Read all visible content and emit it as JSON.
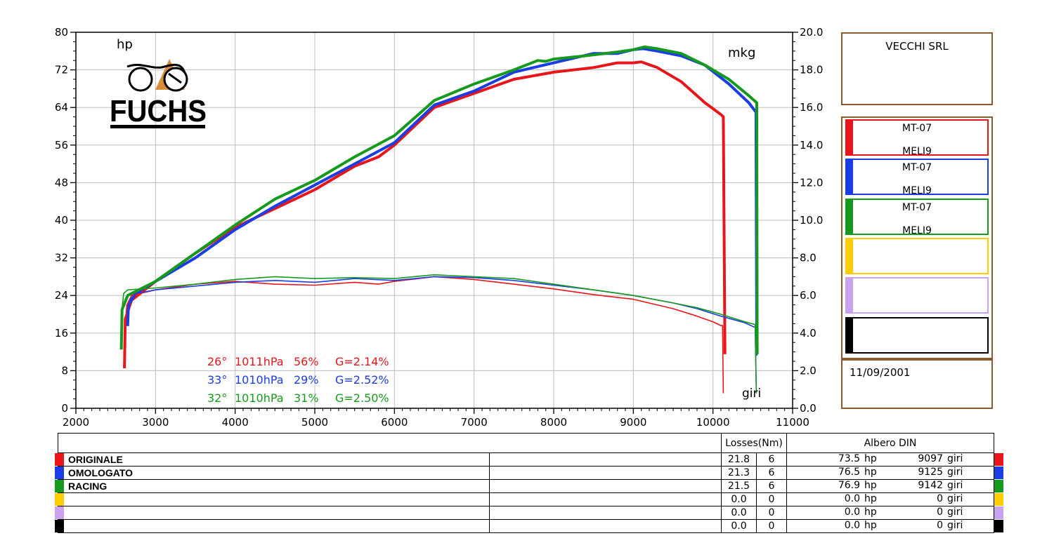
{
  "header": {
    "company": "VECCHI SRL",
    "date": "11/09/2001",
    "logo_text": "FUCHS"
  },
  "runs": [
    {
      "model": "MT-07",
      "sub": "MELI9",
      "color": "#e8161b"
    },
    {
      "model": "MT-07",
      "sub": "MELI9",
      "color": "#1a3de6"
    },
    {
      "model": "MT-07",
      "sub": "MELI9",
      "color": "#169a1e"
    },
    {
      "model": "",
      "sub": "",
      "color": "#ffcc00"
    },
    {
      "model": "",
      "sub": "",
      "color": "#c9a3ef"
    },
    {
      "model": "",
      "sub": "",
      "color": "#000000"
    }
  ],
  "conditions": [
    {
      "temp": "26°",
      "pressure": "1011hPa",
      "humidity": "56%",
      "g": "G=2.14%",
      "color": "#e8161b"
    },
    {
      "temp": "33°",
      "pressure": "1010hPa",
      "humidity": "29%",
      "g": "G=2.52%",
      "color": "#1a3de6"
    },
    {
      "temp": "32°",
      "pressure": "1010hPa",
      "humidity": "31%",
      "g": "G=2.50%",
      "color": "#169a1e"
    }
  ],
  "table": {
    "losses_header": "Losses(Nm)",
    "albero_header": "Albero DIN",
    "rows": [
      {
        "name": "ORIGINALE",
        "loss": "21.8",
        "gear": "6",
        "power": "73.5",
        "unit": "hp",
        "rpm": "9097",
        "rpm_unit": "giri",
        "color": "#e8161b"
      },
      {
        "name": "OMOLOGATO",
        "loss": "21.3",
        "gear": "6",
        "power": "76.5",
        "unit": "hp",
        "rpm": "9125",
        "rpm_unit": "giri",
        "color": "#1a3de6"
      },
      {
        "name": "RACING",
        "loss": "21.5",
        "gear": "6",
        "power": "76.9",
        "unit": "hp",
        "rpm": "9142",
        "rpm_unit": "giri",
        "color": "#169a1e"
      },
      {
        "name": "",
        "loss": "0.0",
        "gear": "0",
        "power": "0.0",
        "unit": "hp",
        "rpm": "0",
        "rpm_unit": "giri",
        "color": "#ffcc00"
      },
      {
        "name": "",
        "loss": "0.0",
        "gear": "0",
        "power": "0.0",
        "unit": "hp",
        "rpm": "0",
        "rpm_unit": "giri",
        "color": "#c9a3ef"
      },
      {
        "name": "",
        "loss": "0.0",
        "gear": "0",
        "power": "0.0",
        "unit": "hp",
        "rpm": "0",
        "rpm_unit": "giri",
        "color": "#000000"
      }
    ]
  },
  "chart_data": {
    "type": "line",
    "xlabel": "giri",
    "ylabel_left": "hp",
    "ylabel_right": "mkg",
    "xlim": [
      2000,
      11000
    ],
    "ylim_left": [
      0,
      80
    ],
    "ylim_right": [
      0,
      20
    ],
    "xticks": [
      "2000",
      "3000",
      "4000",
      "5000",
      "6000",
      "7000",
      "8000",
      "9000",
      "10000",
      "11000"
    ],
    "yticks_left": [
      "0",
      "8",
      "16",
      "24",
      "32",
      "40",
      "48",
      "56",
      "64",
      "72",
      "80"
    ],
    "yticks_right": [
      "0.0",
      "2.0",
      "4.0",
      "6.0",
      "8.0",
      "10.0",
      "12.0",
      "14.0",
      "16.0",
      "18.0",
      "20.0"
    ],
    "grid": true,
    "series": [
      {
        "name": "ORIGINALE",
        "quantity": "power_hp",
        "color": "#e8161b",
        "x": [
          2610,
          2620,
          2700,
          3000,
          3500,
          4000,
          4500,
          5000,
          5500,
          5800,
          6000,
          6500,
          7000,
          7500,
          8000,
          8500,
          8800,
          9000,
          9100,
          9300,
          9600,
          9900,
          10100,
          10130,
          10150
        ],
        "y": [
          8.5,
          19,
          23,
          27,
          33,
          38.5,
          42.5,
          46.5,
          51.5,
          53.5,
          56,
          64,
          67,
          70,
          71.5,
          72.5,
          73.5,
          73.5,
          73.7,
          72.5,
          69.5,
          65,
          62.5,
          62,
          11.5
        ]
      },
      {
        "name": "OMOLOGATO",
        "quantity": "power_hp",
        "color": "#1a3de6",
        "x": [
          2650,
          2660,
          2750,
          3000,
          3500,
          4000,
          4500,
          5000,
          5500,
          6000,
          6500,
          7000,
          7500,
          8000,
          8500,
          8800,
          9000,
          9125,
          9300,
          9600,
          9900,
          10200,
          10450,
          10540,
          10550,
          10560
        ],
        "y": [
          17.5,
          22,
          24.5,
          27,
          32,
          38,
          43,
          47.5,
          52,
          56.5,
          64.5,
          67.5,
          71.5,
          73.5,
          75.5,
          75.5,
          76.3,
          76.5,
          76,
          75,
          73,
          69,
          65,
          63,
          11.5,
          11.5
        ]
      },
      {
        "name": "RACING",
        "quantity": "power_hp",
        "color": "#169a1e",
        "x": [
          2570,
          2580,
          2650,
          3000,
          3500,
          4000,
          4500,
          5000,
          5500,
          6000,
          6500,
          7000,
          7500,
          7800,
          7900,
          8000,
          8400,
          8800,
          9000,
          9142,
          9300,
          9600,
          9900,
          10200,
          10450,
          10550,
          10555
        ],
        "y": [
          12.5,
          21,
          24,
          27,
          33,
          39,
          44.5,
          48.5,
          53.5,
          58,
          65.5,
          69,
          72,
          74,
          73.8,
          74.3,
          75,
          75.8,
          76.3,
          76.9,
          76.5,
          75.5,
          73,
          70,
          66.5,
          65,
          11.5
        ]
      },
      {
        "name": "ORIGINALE",
        "quantity": "torque_mkg",
        "color": "#e8161b",
        "x": [
          2620,
          2640,
          2700,
          3000,
          3500,
          4000,
          4500,
          5000,
          5500,
          5800,
          6000,
          6500,
          7000,
          7500,
          8000,
          8500,
          9000,
          9500,
          9800,
          10000,
          10100,
          10120,
          10130
        ],
        "y": [
          4.5,
          5.5,
          6.0,
          6.3,
          6.6,
          6.75,
          6.6,
          6.55,
          6.7,
          6.6,
          6.75,
          7.0,
          6.85,
          6.6,
          6.35,
          6.05,
          5.8,
          5.3,
          4.9,
          4.6,
          4.4,
          4.4,
          0.8
        ]
      },
      {
        "name": "OMOLOGATO",
        "quantity": "torque_mkg",
        "color": "#1a3de6",
        "x": [
          2660,
          2680,
          2750,
          3000,
          3500,
          4000,
          4500,
          5000,
          5500,
          6000,
          6500,
          7000,
          7500,
          8000,
          8500,
          9000,
          9500,
          9800,
          10100,
          10400,
          10530,
          10545
        ],
        "y": [
          5.0,
          5.8,
          6.1,
          6.3,
          6.5,
          6.7,
          6.8,
          6.7,
          6.9,
          6.8,
          7.0,
          6.95,
          6.8,
          6.55,
          6.3,
          6.0,
          5.6,
          5.3,
          4.9,
          4.55,
          4.3,
          0.8
        ]
      },
      {
        "name": "RACING",
        "quantity": "torque_mkg",
        "color": "#169a1e",
        "x": [
          2580,
          2600,
          2650,
          3000,
          3500,
          4000,
          4500,
          5000,
          5500,
          6000,
          6500,
          7000,
          7500,
          8000,
          8500,
          9000,
          9500,
          9800,
          10100,
          10400,
          10530,
          10545
        ],
        "y": [
          5.3,
          6.1,
          6.3,
          6.4,
          6.6,
          6.85,
          7.0,
          6.9,
          6.95,
          6.9,
          7.1,
          7.0,
          6.9,
          6.6,
          6.3,
          6.0,
          5.6,
          5.35,
          5.0,
          4.6,
          4.45,
          0.8
        ]
      }
    ]
  }
}
